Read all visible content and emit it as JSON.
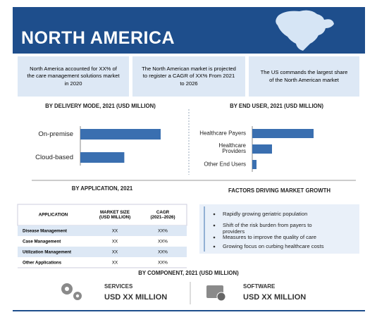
{
  "header": {
    "title": "NORTH AMERICA"
  },
  "boxes": [
    "North America accounted for XX% of\nthe care management solutions market\nin 2020",
    "The North American market is projected\nto register a CAGR of XX% From 2021\nto 2026",
    "The US commands the largest share\nof the North American market"
  ],
  "chart_data": [
    {
      "type": "bar",
      "orientation": "horizontal",
      "title": "BY DELIVERY MODE, 2021 (USD MILLION)",
      "categories": [
        "On-premise",
        "Cloud-based"
      ],
      "values": [
        95,
        52
      ],
      "xlim": [
        0,
        100
      ],
      "color": "#3a6fb0"
    },
    {
      "type": "bar",
      "orientation": "horizontal",
      "title": "BY END USER, 2021 (USD MILLION)",
      "categories": [
        "Healthcare Payers",
        "Healthcare\nProviders",
        "Other End Users"
      ],
      "values": [
        87,
        28,
        6
      ],
      "xlim": [
        0,
        100
      ],
      "color": "#3a6fb0"
    }
  ],
  "application": {
    "title": "BY APPLICATION, 2021",
    "columns": [
      "APPLICATION",
      "MARKET SIZE\n(USD MILLION)",
      "CAGR\n(2021–2026)"
    ],
    "rows": [
      [
        "Disease Management",
        "XX",
        "XX%"
      ],
      [
        "Case Management",
        "XX",
        "XX%"
      ],
      [
        "Utilization Management",
        "XX",
        "XX%"
      ],
      [
        "Other Applications",
        "XX",
        "XX%"
      ]
    ]
  },
  "factors": {
    "title": "FACTORS  DRIVING MARKET GROWTH",
    "items": [
      "Rapidly growing geriatric population",
      "Shift of the risk burden from payers to\nproviders",
      "Measures to improve the quality of care",
      "Growing focus on curbing healthcare costs"
    ]
  },
  "component": {
    "title": "BY COMPONENT, 2021 (USD MILLION)",
    "items": [
      {
        "name": "SERVICES",
        "value": "USD XX MILLION"
      },
      {
        "name": "SOFTWARE",
        "value": "USD XX MILLION"
      }
    ]
  }
}
